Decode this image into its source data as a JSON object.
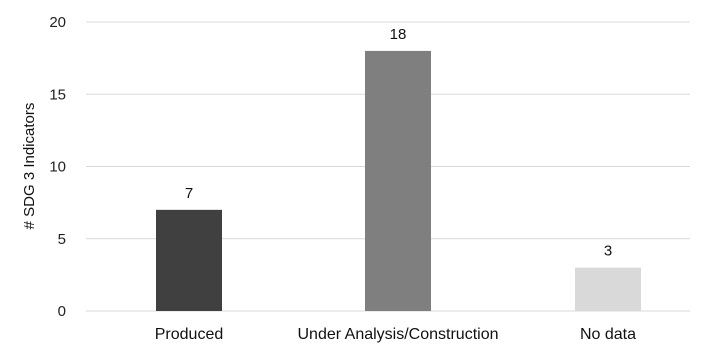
{
  "chart_data": {
    "type": "bar",
    "categories": [
      "Produced",
      "Under Analysis/Construction",
      "No data"
    ],
    "values": [
      7,
      18,
      3
    ],
    "data_labels": [
      "7",
      "18",
      "3"
    ],
    "colors": [
      "#404040",
      "#7f7f7f",
      "#d9d9d9"
    ],
    "title": "",
    "xlabel": "",
    "ylabel": "# SDG 3 Indicators",
    "ylim": [
      0,
      20
    ],
    "yticks": [
      0,
      5,
      10,
      15,
      20
    ],
    "ytick_labels": [
      "0",
      "5",
      "10",
      "15",
      "20"
    ],
    "grid": true,
    "legend": "none"
  }
}
